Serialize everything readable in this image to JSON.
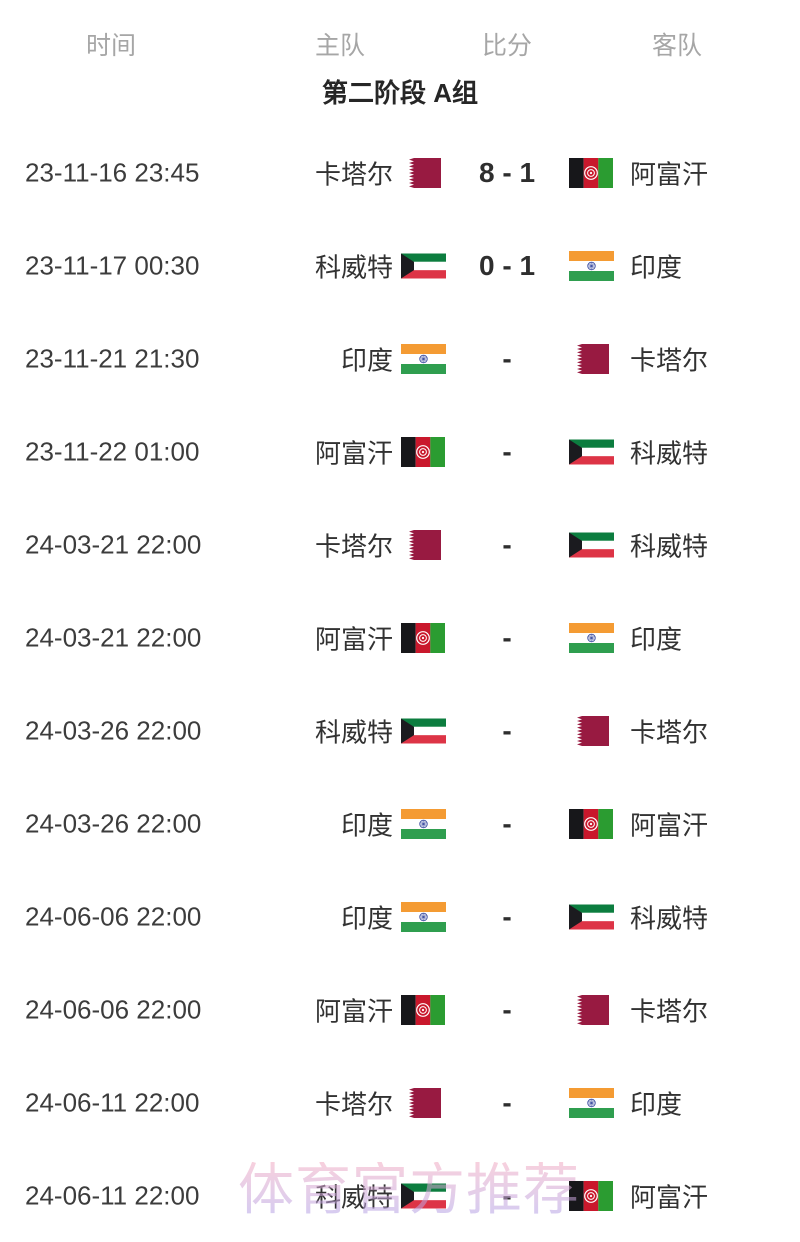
{
  "header": {
    "time": "时间",
    "home": "主队",
    "score": "比分",
    "away": "客队"
  },
  "section": {
    "title": "第二阶段 A组"
  },
  "watermark": {
    "text": "体育官方推荐",
    "color_top": "#f2abc3",
    "color_bottom": "#b2a3e8"
  },
  "text_colors": {
    "header_gray": "#a6a6a6",
    "title": "#262626",
    "body": "#323232"
  },
  "flag_colors": {
    "qatar": {
      "maroon": "#981a41",
      "white": "#ffffff"
    },
    "afghanistan": {
      "black": "#17171a",
      "red": "#c9182c",
      "green": "#2b9c31",
      "emblem": "#ffffff"
    },
    "kuwait": {
      "green": "#0c7d3f",
      "white": "#ffffff",
      "red": "#dd3446",
      "black": "#1b1b1f"
    },
    "india": {
      "saffron": "#f49b33",
      "white": "#ffffff",
      "green": "#2f9e4f",
      "chakra": "#3a4ba0"
    }
  },
  "matches": [
    {
      "time": "23-11-16 23:45",
      "home": "卡塔尔",
      "home_flag": "qatar",
      "score": "8 - 1",
      "away": "阿富汗",
      "away_flag": "afghanistan"
    },
    {
      "time": "23-11-17 00:30",
      "home": "科威特",
      "home_flag": "kuwait",
      "score": "0 - 1",
      "away": "印度",
      "away_flag": "india"
    },
    {
      "time": "23-11-21 21:30",
      "home": "印度",
      "home_flag": "india",
      "score": "-",
      "away": "卡塔尔",
      "away_flag": "qatar"
    },
    {
      "time": "23-11-22 01:00",
      "home": "阿富汗",
      "home_flag": "afghanistan",
      "score": "-",
      "away": "科威特",
      "away_flag": "kuwait"
    },
    {
      "time": "24-03-21 22:00",
      "home": "卡塔尔",
      "home_flag": "qatar",
      "score": "-",
      "away": "科威特",
      "away_flag": "kuwait"
    },
    {
      "time": "24-03-21 22:00",
      "home": "阿富汗",
      "home_flag": "afghanistan",
      "score": "-",
      "away": "印度",
      "away_flag": "india"
    },
    {
      "time": "24-03-26 22:00",
      "home": "科威特",
      "home_flag": "kuwait",
      "score": "-",
      "away": "卡塔尔",
      "away_flag": "qatar"
    },
    {
      "time": "24-03-26 22:00",
      "home": "印度",
      "home_flag": "india",
      "score": "-",
      "away": "阿富汗",
      "away_flag": "afghanistan"
    },
    {
      "time": "24-06-06 22:00",
      "home": "印度",
      "home_flag": "india",
      "score": "-",
      "away": "科威特",
      "away_flag": "kuwait"
    },
    {
      "time": "24-06-06 22:00",
      "home": "阿富汗",
      "home_flag": "afghanistan",
      "score": "-",
      "away": "卡塔尔",
      "away_flag": "qatar"
    },
    {
      "time": "24-06-11 22:00",
      "home": "卡塔尔",
      "home_flag": "qatar",
      "score": "-",
      "away": "印度",
      "away_flag": "india"
    },
    {
      "time": "24-06-11 22:00",
      "home": "科威特",
      "home_flag": "kuwait",
      "score": "-",
      "away": "阿富汗",
      "away_flag": "afghanistan"
    }
  ]
}
